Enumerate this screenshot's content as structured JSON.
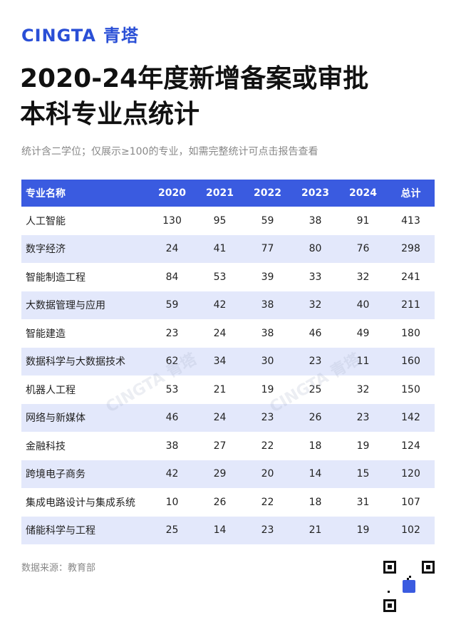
{
  "brand": {
    "name": "CINGTA",
    "name_cn": "青塔"
  },
  "title": [
    "2020-24年度新增备案或审批",
    "本科专业点统计"
  ],
  "subtitle": "统计含二学位；仅展示≥100的专业，如需完整统计可点击报告查看",
  "table": {
    "columns": [
      "专业名称",
      "2020",
      "2021",
      "2022",
      "2023",
      "2024",
      "总计"
    ],
    "rows": [
      [
        "人工智能",
        130,
        95,
        59,
        38,
        91,
        413
      ],
      [
        "数字经济",
        24,
        41,
        77,
        80,
        76,
        298
      ],
      [
        "智能制造工程",
        84,
        53,
        39,
        33,
        32,
        241
      ],
      [
        "大数据管理与应用",
        59,
        42,
        38,
        32,
        40,
        211
      ],
      [
        "智能建造",
        23,
        24,
        38,
        46,
        49,
        180
      ],
      [
        "数据科学与大数据技术",
        62,
        34,
        30,
        23,
        11,
        160
      ],
      [
        "机器人工程",
        53,
        21,
        19,
        25,
        32,
        150
      ],
      [
        "网络与新媒体",
        46,
        24,
        23,
        26,
        23,
        142
      ],
      [
        "金融科技",
        38,
        27,
        22,
        18,
        19,
        124
      ],
      [
        "跨境电子商务",
        42,
        29,
        20,
        14,
        15,
        120
      ],
      [
        "集成电路设计与集成系统",
        10,
        26,
        22,
        18,
        31,
        107
      ],
      [
        "储能科学与工程",
        25,
        14,
        23,
        21,
        19,
        102
      ]
    ]
  },
  "source": "数据来源：教育部"
}
